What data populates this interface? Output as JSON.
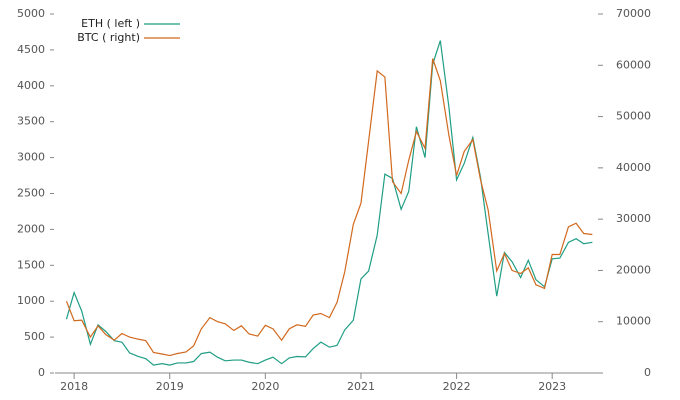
{
  "chart_data": {
    "type": "line",
    "x": [
      2017.92,
      2018.0,
      2018.08,
      2018.17,
      2018.25,
      2018.33,
      2018.42,
      2018.5,
      2018.58,
      2018.67,
      2018.75,
      2018.83,
      2018.92,
      2019.0,
      2019.08,
      2019.17,
      2019.25,
      2019.33,
      2019.42,
      2019.5,
      2019.58,
      2019.67,
      2019.75,
      2019.83,
      2019.92,
      2020.0,
      2020.08,
      2020.17,
      2020.25,
      2020.33,
      2020.42,
      2020.5,
      2020.58,
      2020.67,
      2020.75,
      2020.83,
      2020.92,
      2021.0,
      2021.08,
      2021.17,
      2021.25,
      2021.33,
      2021.42,
      2021.5,
      2021.58,
      2021.67,
      2021.75,
      2021.83,
      2021.92,
      2022.0,
      2022.08,
      2022.17,
      2022.25,
      2022.33,
      2022.42,
      2022.5,
      2022.58,
      2022.67,
      2022.75,
      2022.83,
      2022.92,
      2023.0,
      2023.08,
      2023.17,
      2023.25,
      2023.33,
      2023.42
    ],
    "series": [
      {
        "name": "ETH ( left )",
        "color": "#1f9e84",
        "values": [
          750,
          1120,
          860,
          400,
          670,
          580,
          450,
          430,
          280,
          230,
          200,
          110,
          130,
          110,
          140,
          140,
          160,
          270,
          290,
          220,
          170,
          180,
          180,
          150,
          130,
          180,
          220,
          130,
          210,
          230,
          225,
          340,
          430,
          360,
          385,
          600,
          735,
          1310,
          1420,
          1920,
          2770,
          2710,
          2280,
          2530,
          3430,
          3000,
          4300,
          4630,
          3700,
          2690,
          2920,
          3280,
          2730,
          1940,
          1070,
          1680,
          1550,
          1330,
          1570,
          1300,
          1200,
          1590,
          1600,
          1820,
          1870,
          1800,
          1820
        ]
      },
      {
        "name": "BTC (  right)",
        "color": "#d2691e",
        "axis": "y2",
        "values": [
          14000,
          10200,
          10300,
          7000,
          9200,
          7500,
          6400,
          7700,
          7000,
          6600,
          6300,
          4000,
          3700,
          3400,
          3800,
          4100,
          5300,
          8600,
          10800,
          10000,
          9600,
          8300,
          9200,
          7600,
          7200,
          9300,
          8600,
          6400,
          8600,
          9400,
          9100,
          11300,
          11600,
          10800,
          13800,
          19700,
          29000,
          33100,
          45200,
          58900,
          57700,
          37300,
          35000,
          41500,
          47100,
          43800,
          61300,
          57000,
          46300,
          38500,
          43200,
          45500,
          37700,
          31800,
          19900,
          23300,
          20000,
          19400,
          20500,
          17200,
          16500,
          23100,
          23100,
          28500,
          29200,
          27200,
          27000
        ]
      }
    ],
    "xlim": [
      2017.8,
      2023.5
    ],
    "xticks": [
      2018,
      2019,
      2020,
      2021,
      2022,
      2023
    ],
    "ylim": [
      0,
      5000
    ],
    "yticks": [
      0,
      500,
      1000,
      1500,
      2000,
      2500,
      3000,
      3500,
      4000,
      4500,
      5000
    ],
    "y2lim": [
      0,
      70000
    ],
    "y2ticks": [
      0,
      10000,
      20000,
      30000,
      40000,
      50000,
      60000,
      70000
    ],
    "legend": "upper left"
  }
}
